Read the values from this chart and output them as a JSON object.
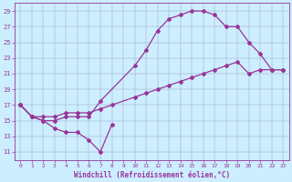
{
  "xlabel": "Windchill (Refroidissement éolien,°C)",
  "background_color": "#cceeff",
  "line_color": "#993399",
  "xlim_min": -0.5,
  "xlim_max": 23.5,
  "ylim_min": 10.0,
  "ylim_max": 30.0,
  "yticks": [
    11,
    13,
    15,
    17,
    19,
    21,
    23,
    25,
    27,
    29
  ],
  "xticks": [
    0,
    1,
    2,
    3,
    4,
    5,
    6,
    7,
    8,
    9,
    10,
    11,
    12,
    13,
    14,
    15,
    16,
    17,
    18,
    19,
    20,
    21,
    22,
    23
  ],
  "line1_x": [
    0,
    1,
    2,
    3,
    4,
    5,
    6,
    7,
    8
  ],
  "line1_y": [
    17.0,
    15.5,
    15.0,
    14.0,
    13.5,
    13.5,
    12.5,
    11.0,
    14.5
  ],
  "line2_x": [
    0,
    1,
    2,
    3,
    4,
    5,
    6,
    7,
    10,
    11,
    12,
    13,
    14,
    15,
    16,
    17,
    18,
    19,
    20,
    21,
    22,
    23
  ],
  "line2_y": [
    17.0,
    15.5,
    15.0,
    15.0,
    15.5,
    15.5,
    15.5,
    17.5,
    22.0,
    24.0,
    26.5,
    28.0,
    28.5,
    29.0,
    29.0,
    28.5,
    27.0,
    27.0,
    25.0,
    23.5,
    21.5,
    21.5
  ],
  "line3_x": [
    0,
    1,
    2,
    3,
    4,
    5,
    6,
    7,
    8,
    10,
    11,
    12,
    13,
    14,
    15,
    16,
    17,
    18,
    19,
    20,
    21,
    22,
    23
  ],
  "line3_y": [
    17.0,
    15.5,
    15.5,
    15.5,
    16.0,
    16.0,
    16.0,
    16.5,
    17.0,
    18.0,
    18.5,
    19.0,
    19.5,
    20.0,
    20.5,
    21.0,
    21.5,
    22.0,
    22.5,
    21.0,
    21.5,
    21.5,
    21.5
  ]
}
